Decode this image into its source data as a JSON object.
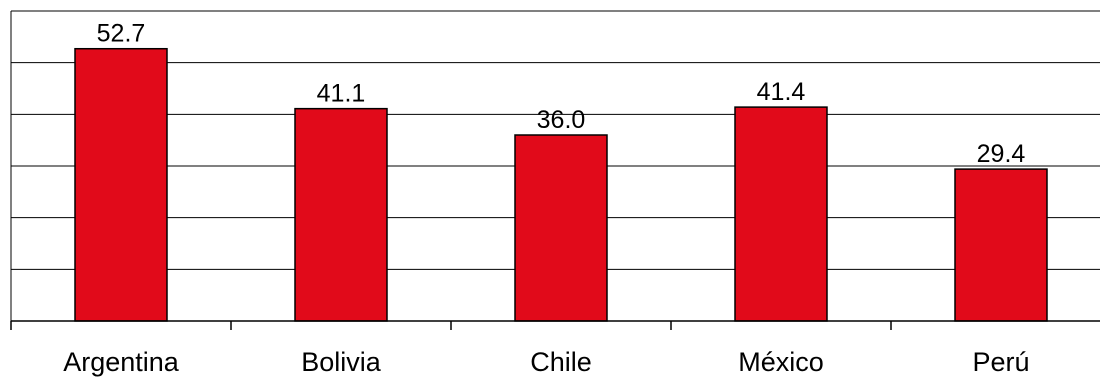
{
  "chart_data": {
    "type": "bar",
    "categories": [
      "Argentina",
      "Bolivia",
      "Chile",
      "México",
      "Perú"
    ],
    "values": [
      52.7,
      41.1,
      36.0,
      41.4,
      29.4
    ],
    "value_labels": [
      "52.7",
      "41.1",
      "36.0",
      "41.4",
      "29.4"
    ],
    "title": "",
    "xlabel": "",
    "ylabel": "",
    "ylim": [
      0,
      60
    ],
    "grid": true,
    "legend": "none",
    "colors": {
      "bar_fill": "#e10a1a",
      "bar_stroke": "#000000",
      "gridline": "#000000"
    }
  }
}
